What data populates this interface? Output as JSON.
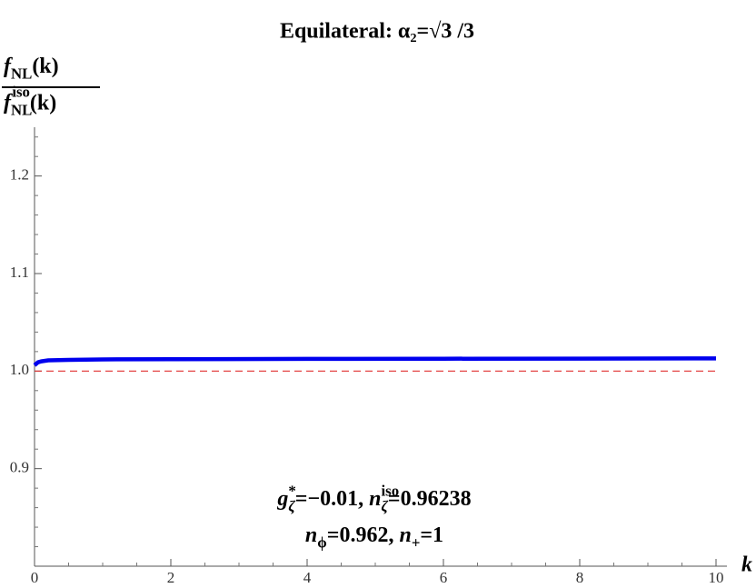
{
  "chart_data": {
    "type": "line",
    "title": "Equilateral: α₂=√3 /3",
    "ylabel": {
      "numerator": [
        "f",
        "NL",
        "(k)"
      ],
      "denominator": [
        "f",
        "NL",
        "iso",
        "(k)"
      ]
    },
    "xlabel": "k",
    "annotations": [
      [
        "g",
        "*",
        "ζ",
        "=−0.01, ",
        "n",
        "iso",
        "ζ",
        "=0.96238"
      ],
      [
        "n",
        "ϕ",
        "=0.962, ",
        "n",
        "+",
        "=1"
      ]
    ],
    "series": [
      {
        "color": "#0000ee",
        "x": [
          0,
          0.05,
          0.1,
          0.2,
          0.5,
          1,
          2,
          4,
          6,
          8,
          10
        ],
        "values": [
          1.006,
          1.009,
          1.01,
          1.011,
          1.0115,
          1.012,
          1.0122,
          1.0125,
          1.0127,
          1.0128,
          1.013
        ]
      },
      {
        "color": "#e03030",
        "dashed": true,
        "x": [
          0,
          10
        ],
        "values": [
          1,
          1
        ]
      }
    ],
    "xlim": [
      0,
      10
    ],
    "xticks": [
      0,
      2,
      4,
      6,
      8,
      10
    ],
    "xminorticks": [
      0.5,
      1,
      1.5,
      2.5,
      3,
      3.5,
      4.5,
      5,
      5.5,
      6.5,
      7,
      7.5,
      8.5,
      9,
      9.5
    ],
    "ylim": [
      0.8,
      1.25
    ],
    "yticks": [
      0.9,
      {
        "value": 1,
        "label": "1.0"
      },
      1.1,
      1.2
    ],
    "yminorticks": [
      0.82,
      0.84,
      0.86,
      0.88,
      0.92,
      0.94,
      0.96,
      0.98,
      1.02,
      1.04,
      1.06,
      1.08,
      1.12,
      1.14,
      1.16,
      1.18,
      1.22,
      1.24
    ]
  }
}
